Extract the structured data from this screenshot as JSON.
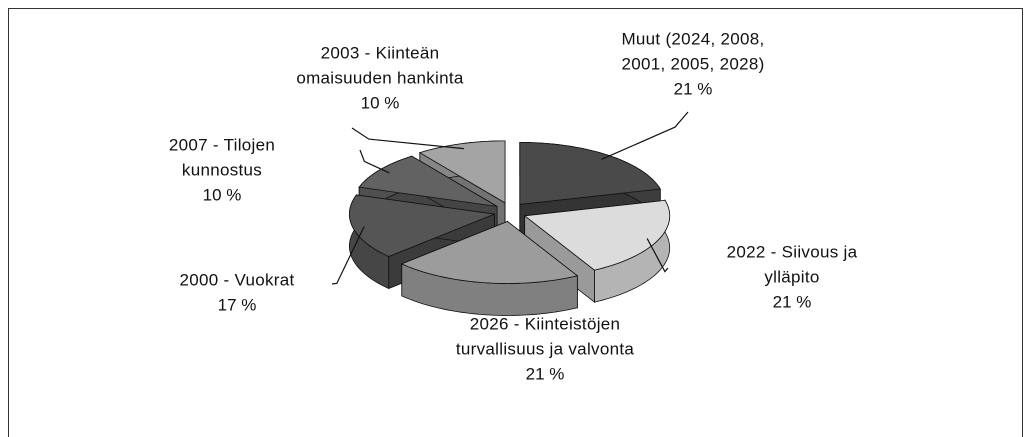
{
  "chart_data": {
    "type": "pie",
    "categories": [
      [
        "Muut (2024, 2008,",
        "2001, 2005, 2028)"
      ],
      [
        "2022 - Siivous ja",
        "ylläpito"
      ],
      [
        "2026 - Kiinteistöjen",
        "turvallisuus ja valvonta"
      ],
      [
        "2000 - Vuokrat"
      ],
      [
        "2007 - Tilojen",
        "kunnostus"
      ],
      [
        "2003 - Kiinteän",
        "omaisuuden hankinta"
      ]
    ],
    "values": [
      21,
      21,
      21,
      17,
      10,
      10
    ],
    "value_labels": [
      "21 %",
      "21 %",
      "21 %",
      "17 %",
      "10 %",
      "10 %"
    ],
    "colors": [
      "#4a4a4a",
      "#dcdcdc",
      "#9c9c9c",
      "#555555",
      "#626262",
      "#a4a4a4"
    ]
  }
}
